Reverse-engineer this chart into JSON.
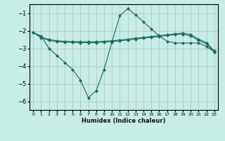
{
  "xlabel": "Humidex (Indice chaleur)",
  "xlim": [
    -0.5,
    23.5
  ],
  "ylim": [
    -6.5,
    -0.5
  ],
  "yticks": [
    -6,
    -5,
    -4,
    -3,
    -2,
    -1
  ],
  "xticks": [
    0,
    1,
    2,
    3,
    4,
    5,
    6,
    7,
    8,
    9,
    10,
    11,
    12,
    13,
    14,
    15,
    16,
    17,
    18,
    19,
    20,
    21,
    22,
    23
  ],
  "background_color": "#c8ece6",
  "grid_color": "#b0b0b0",
  "line_color": "#1a6b5e",
  "lines": [
    {
      "x": [
        0,
        1,
        2,
        3,
        4,
        5,
        6,
        7,
        8,
        9,
        10,
        11,
        12,
        13,
        14,
        15,
        16,
        17,
        18,
        19,
        20,
        21,
        22,
        23
      ],
      "y": [
        -2.1,
        -2.4,
        -2.55,
        -2.62,
        -2.65,
        -2.67,
        -2.68,
        -2.68,
        -2.68,
        -2.65,
        -2.62,
        -2.58,
        -2.53,
        -2.48,
        -2.43,
        -2.38,
        -2.33,
        -2.28,
        -2.23,
        -2.2,
        -2.3,
        -2.55,
        -2.75,
        -3.2
      ],
      "marker": "D",
      "markersize": 2.0
    },
    {
      "x": [
        0,
        1,
        2,
        3,
        4,
        5,
        6,
        7,
        8,
        9,
        10,
        11,
        12,
        13,
        14,
        15,
        16,
        17,
        18,
        19,
        20,
        21,
        22,
        23
      ],
      "y": [
        -2.1,
        -2.35,
        -2.5,
        -2.57,
        -2.6,
        -2.62,
        -2.63,
        -2.63,
        -2.63,
        -2.6,
        -2.57,
        -2.53,
        -2.48,
        -2.43,
        -2.38,
        -2.33,
        -2.28,
        -2.23,
        -2.18,
        -2.13,
        -2.22,
        -2.48,
        -2.68,
        -3.15
      ],
      "marker": "D",
      "markersize": 2.0
    },
    {
      "x": [
        0,
        1,
        2,
        3,
        4,
        5,
        6,
        7,
        8,
        9,
        10,
        11,
        12,
        13,
        14,
        15,
        16,
        17,
        18,
        19,
        20,
        21,
        22,
        23
      ],
      "y": [
        -2.1,
        -2.3,
        -3.0,
        -3.4,
        -3.8,
        -4.2,
        -4.8,
        -5.8,
        -5.4,
        -4.2,
        -2.65,
        -1.15,
        -0.75,
        -1.1,
        -1.5,
        -1.9,
        -2.3,
        -2.6,
        -2.7,
        -2.7,
        -2.7,
        -2.7,
        -2.9,
        -3.2
      ],
      "marker": "D",
      "markersize": 2.0
    }
  ]
}
